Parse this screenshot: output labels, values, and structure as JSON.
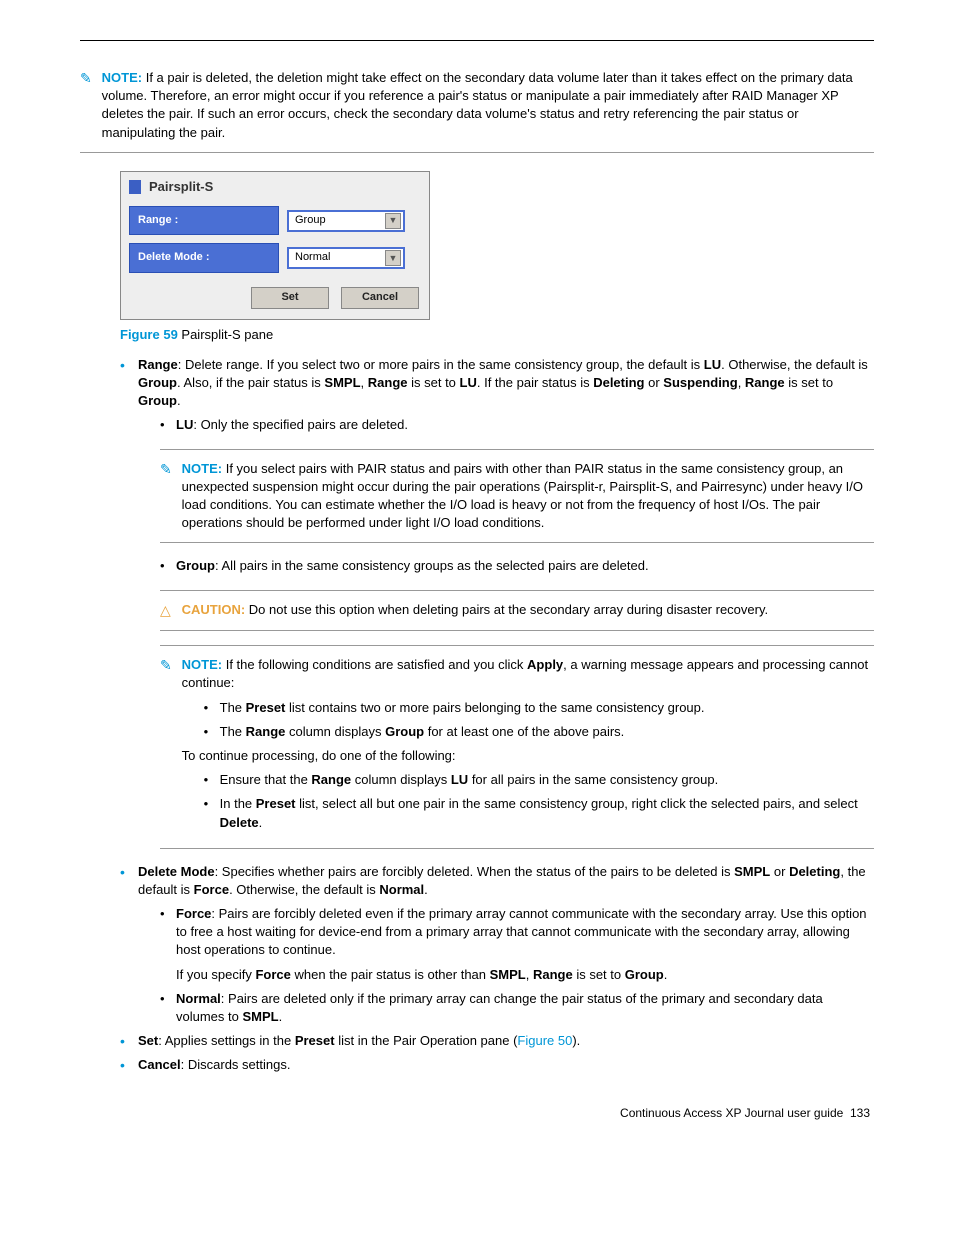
{
  "notes": {
    "note_label": "NOTE:",
    "caution_label": "CAUTION:",
    "top_note": "If a pair is deleted, the deletion might take effect on the secondary data volume later than it takes effect on the primary data volume. Therefore, an error might occur if you reference a pair's status or manipulate a pair immediately after RAID Manager XP deletes the pair. If such an error occurs, check the secondary data volume's status and retry referencing the pair status or manipulating the pair.",
    "lu_note": "If you select pairs with PAIR status and pairs with other than PAIR status in the same consistency group, an unexpected suspension might occur during the pair operations (Pairsplit-r, Pairsplit-S, and Pairresync) under heavy I/O load conditions. You can estimate whether the I/O load is heavy or not from the frequency of host I/Os. The pair operations should be performed under light I/O load conditions.",
    "group_caution": "Do not use this option when deleting pairs at the secondary array during disaster recovery.",
    "apply_note_intro_a": "If the following conditions are satisfied and you click ",
    "apply_note_intro_b": ", a warning message appears and processing cannot continue:",
    "apply_cond1_a": "The ",
    "apply_cond1_b": " list contains two or more pairs belonging to the same consistency group.",
    "apply_cond2_a": "The ",
    "apply_cond2_b": " column displays ",
    "apply_cond2_c": " for at least one of the above pairs.",
    "apply_continue": "To continue processing, do one of the following:",
    "apply_fix1_a": "Ensure that the ",
    "apply_fix1_b": " column displays ",
    "apply_fix1_c": " for all pairs in the same consistency group.",
    "apply_fix2_a": "In the ",
    "apply_fix2_b": " list, select all but one pair in the same consistency group, right click the selected pairs, and select "
  },
  "pane": {
    "title": "Pairsplit-S",
    "range_label": "Range :",
    "range_value": "Group",
    "delete_mode_label": "Delete Mode :",
    "delete_mode_value": "Normal",
    "set_btn": "Set",
    "cancel_btn": "Cancel"
  },
  "figure": {
    "num": "Figure 59",
    "caption": " Pairsplit-S pane"
  },
  "terms": {
    "range": "Range",
    "lu": "LU",
    "group": "Group",
    "smpl": "SMPL",
    "deleting": "Deleting",
    "suspending": "Suspending",
    "preset": "Preset",
    "apply": "Apply",
    "delete": "Delete",
    "delete_mode": "Delete Mode",
    "force": "Force",
    "normal": "Normal",
    "set": "Set",
    "cancel": "Cancel"
  },
  "body": {
    "range_a": ": Delete range. If you select two or more pairs in the same consistency group, the default is ",
    "range_b": ". Otherwise, the default is ",
    "range_c": ". Also, if the pair status is ",
    "range_d": ", ",
    "range_e": " is set to ",
    "range_f": ". If the pair status is ",
    "range_g": " or ",
    "range_h": ", ",
    "range_i": " is set to ",
    "range_j": ".",
    "lu_desc": ": Only the specified pairs are deleted.",
    "group_desc": ": All pairs in the same consistency groups as the selected pairs are deleted.",
    "dm_a": ": Specifies whether pairs are forcibly deleted. When the status of the pairs to be deleted is ",
    "dm_b": " or ",
    "dm_c": ", the default is ",
    "dm_d": ". Otherwise, the default is ",
    "dm_e": ".",
    "force_desc": ": Pairs are forcibly deleted even if the primary array cannot communicate with the secondary array. Use this option to free a host waiting for device-end from a primary array that cannot communicate with the secondary array, allowing host operations to continue.",
    "force_extra_a": "If you specify ",
    "force_extra_b": " when the pair status is other than ",
    "force_extra_c": ", ",
    "force_extra_d": " is set to ",
    "force_extra_e": ".",
    "normal_a": ": Pairs are deleted only if the primary array can change the pair status of the primary and secondary data volumes to ",
    "normal_b": ".",
    "set_a": ": Applies settings in the ",
    "set_b": " list in the Pair Operation pane (",
    "set_link": "Figure 50",
    "set_c": ").",
    "cancel_desc": ": Discards settings."
  },
  "footer": {
    "text": "Continuous Access XP Journal user guide",
    "page": "133"
  }
}
